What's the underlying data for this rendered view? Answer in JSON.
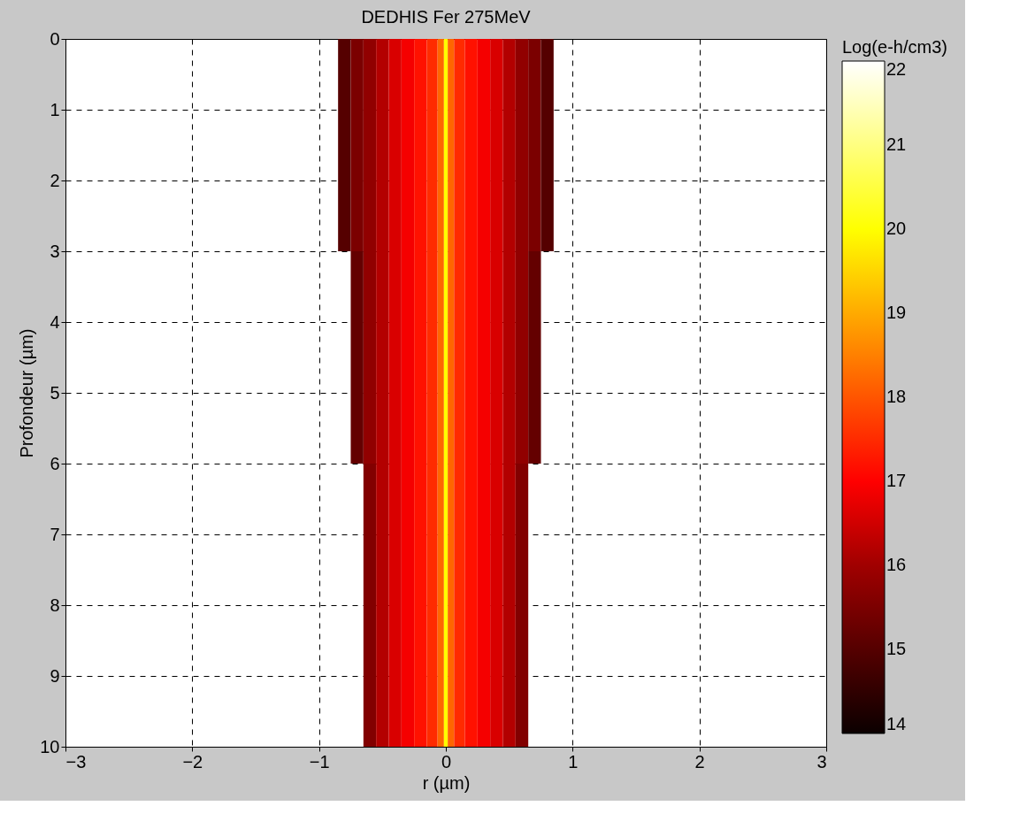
{
  "chart_data": {
    "type": "heatmap",
    "title": "DEDHIS Fer 275MeV",
    "xlabel": "r (µm)",
    "ylabel": "Profondeur (µm)",
    "clabel": "Log(e-h/cm3)",
    "x": [
      -0.8,
      -0.7,
      -0.6,
      -0.5,
      -0.4,
      -0.3,
      -0.2,
      -0.1,
      -0.03,
      0,
      0.03,
      0.1,
      0.2,
      0.3,
      0.4,
      0.5,
      0.6,
      0.7,
      0.8
    ],
    "y": [
      0.5,
      1.5,
      2.5,
      3.5,
      4.5,
      5.5,
      6.5,
      7.5,
      8.5,
      9.5
    ],
    "cells": [
      [
        15.0,
        15.5,
        15.8,
        16.2,
        16.6,
        16.9,
        17.2,
        17.5,
        18.2,
        20.0,
        18.2,
        17.5,
        17.2,
        16.9,
        16.6,
        16.2,
        15.8,
        15.5,
        15.0
      ],
      [
        15.0,
        15.5,
        15.8,
        16.2,
        16.6,
        16.9,
        17.2,
        17.5,
        18.2,
        20.0,
        18.2,
        17.5,
        17.2,
        16.9,
        16.6,
        16.2,
        15.8,
        15.5,
        15.0
      ],
      [
        15.0,
        15.5,
        15.8,
        16.2,
        16.6,
        16.9,
        17.2,
        17.5,
        18.2,
        20.0,
        18.2,
        17.5,
        17.2,
        16.9,
        16.6,
        16.2,
        15.8,
        15.5,
        15.0
      ],
      [
        null,
        15.2,
        15.8,
        16.2,
        16.6,
        16.9,
        17.2,
        17.5,
        18.2,
        20.0,
        18.2,
        17.5,
        17.2,
        16.9,
        16.6,
        16.2,
        15.8,
        15.2,
        null
      ],
      [
        null,
        15.2,
        15.8,
        16.2,
        16.6,
        16.9,
        17.2,
        17.5,
        18.2,
        20.0,
        18.2,
        17.5,
        17.2,
        16.9,
        16.6,
        16.2,
        15.8,
        15.2,
        null
      ],
      [
        null,
        15.2,
        15.8,
        16.2,
        16.6,
        16.9,
        17.2,
        17.5,
        18.2,
        20.0,
        18.2,
        17.5,
        17.2,
        16.9,
        16.6,
        16.2,
        15.8,
        15.2,
        null
      ],
      [
        null,
        null,
        15.6,
        16.2,
        16.6,
        16.9,
        17.2,
        17.5,
        18.2,
        20.0,
        18.2,
        17.5,
        17.2,
        16.9,
        16.6,
        16.2,
        15.6,
        null,
        null
      ],
      [
        null,
        null,
        15.6,
        16.2,
        16.6,
        16.9,
        17.2,
        17.5,
        18.2,
        20.0,
        18.2,
        17.5,
        17.2,
        16.9,
        16.6,
        16.2,
        15.6,
        null,
        null
      ],
      [
        null,
        null,
        15.6,
        16.2,
        16.6,
        16.9,
        17.2,
        17.5,
        18.2,
        20.0,
        18.2,
        17.5,
        17.2,
        16.9,
        16.6,
        16.2,
        15.6,
        null,
        null
      ],
      [
        null,
        null,
        15.6,
        16.2,
        16.6,
        16.9,
        17.2,
        17.5,
        18.2,
        20.0,
        18.2,
        17.5,
        17.2,
        16.9,
        16.6,
        16.2,
        15.6,
        null,
        null
      ]
    ],
    "xlim": [
      -3,
      3
    ],
    "xticks": [
      -3,
      -2,
      -1,
      0,
      1,
      2,
      3
    ],
    "ylim": [
      10,
      0
    ],
    "yticks": [
      0,
      1,
      2,
      3,
      4,
      5,
      6,
      7,
      8,
      9,
      10
    ],
    "clim": [
      14,
      22
    ],
    "cticks": [
      14,
      15,
      16,
      17,
      18,
      19,
      20,
      21,
      22
    ],
    "grid": true
  }
}
